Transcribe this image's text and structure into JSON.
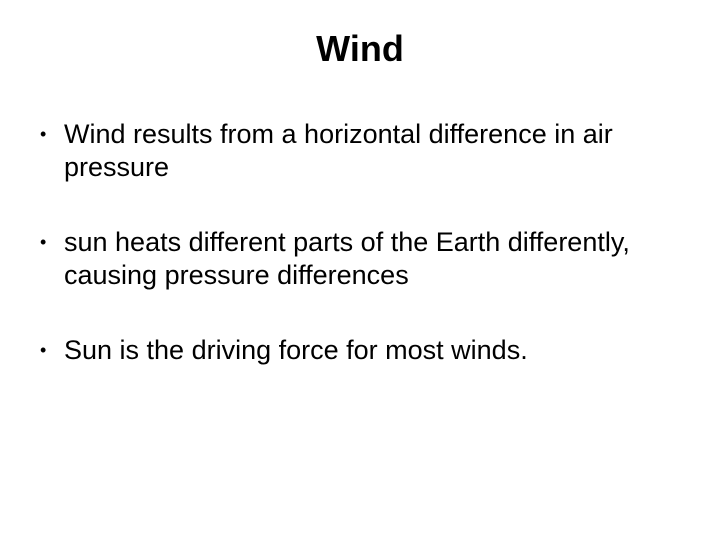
{
  "slide": {
    "title": "Wind",
    "bullets": [
      "Wind results from a horizontal difference in air pressure",
      "sun heats different parts of the Earth differently, causing pressure differences",
      "Sun is the driving force for most winds."
    ],
    "title_fontsize": 36,
    "body_fontsize": 27,
    "text_color": "#000000",
    "background_color": "#ffffff",
    "font_family": "Arial",
    "bullet_marker": "•"
  }
}
